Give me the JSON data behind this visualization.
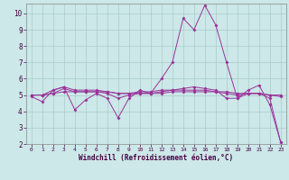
{
  "title": "",
  "xlabel": "Windchill (Refroidissement éolien,°C)",
  "ylabel": "",
  "background_color": "#cce8e8",
  "grid_color": "#aacccc",
  "line_color": "#993399",
  "xlim": [
    -0.5,
    23.5
  ],
  "ylim": [
    2,
    10.6
  ],
  "yticks": [
    2,
    3,
    4,
    5,
    6,
    7,
    8,
    9,
    10
  ],
  "xticks": [
    0,
    1,
    2,
    3,
    4,
    5,
    6,
    7,
    8,
    9,
    10,
    11,
    12,
    13,
    14,
    15,
    16,
    17,
    18,
    19,
    20,
    21,
    22,
    23
  ],
  "lines": [
    {
      "x": [
        0,
        1,
        2,
        3,
        4,
        5,
        6,
        7,
        8,
        9,
        10,
        11,
        12,
        13,
        14,
        15,
        16,
        17,
        18,
        19,
        20,
        21,
        22,
        23
      ],
      "y": [
        4.9,
        4.6,
        5.3,
        5.5,
        4.1,
        4.7,
        5.1,
        4.8,
        3.6,
        4.8,
        5.3,
        5.1,
        6.0,
        7.0,
        9.7,
        9.0,
        10.5,
        9.3,
        7.0,
        4.8,
        5.3,
        5.6,
        4.4,
        2.1
      ]
    },
    {
      "x": [
        0,
        1,
        2,
        3,
        4,
        5,
        6,
        7,
        8,
        9,
        10,
        11,
        12,
        13,
        14,
        15,
        16,
        17,
        18,
        19,
        20,
        21,
        22,
        23
      ],
      "y": [
        5.0,
        5.0,
        5.1,
        5.2,
        5.2,
        5.2,
        5.2,
        5.2,
        5.1,
        5.1,
        5.1,
        5.1,
        5.1,
        5.2,
        5.2,
        5.2,
        5.2,
        5.2,
        5.2,
        5.1,
        5.1,
        5.1,
        5.0,
        5.0
      ]
    },
    {
      "x": [
        0,
        1,
        2,
        3,
        4,
        5,
        6,
        7,
        8,
        9,
        10,
        11,
        12,
        13,
        14,
        15,
        16,
        17,
        18,
        19,
        20,
        21,
        22,
        23
      ],
      "y": [
        5.0,
        5.0,
        5.3,
        5.5,
        5.3,
        5.3,
        5.3,
        5.2,
        5.1,
        5.1,
        5.2,
        5.2,
        5.3,
        5.3,
        5.3,
        5.3,
        5.3,
        5.2,
        5.1,
        5.0,
        5.1,
        5.1,
        5.0,
        4.9
      ]
    },
    {
      "x": [
        0,
        1,
        2,
        3,
        4,
        5,
        6,
        7,
        8,
        9,
        10,
        11,
        12,
        13,
        14,
        15,
        16,
        17,
        18,
        19,
        20,
        21,
        22,
        23
      ],
      "y": [
        5.0,
        5.0,
        5.1,
        5.4,
        5.2,
        5.2,
        5.2,
        5.1,
        4.8,
        5.0,
        5.1,
        5.1,
        5.2,
        5.3,
        5.4,
        5.5,
        5.4,
        5.3,
        4.8,
        4.8,
        5.1,
        5.1,
        4.8,
        2.1
      ]
    }
  ]
}
